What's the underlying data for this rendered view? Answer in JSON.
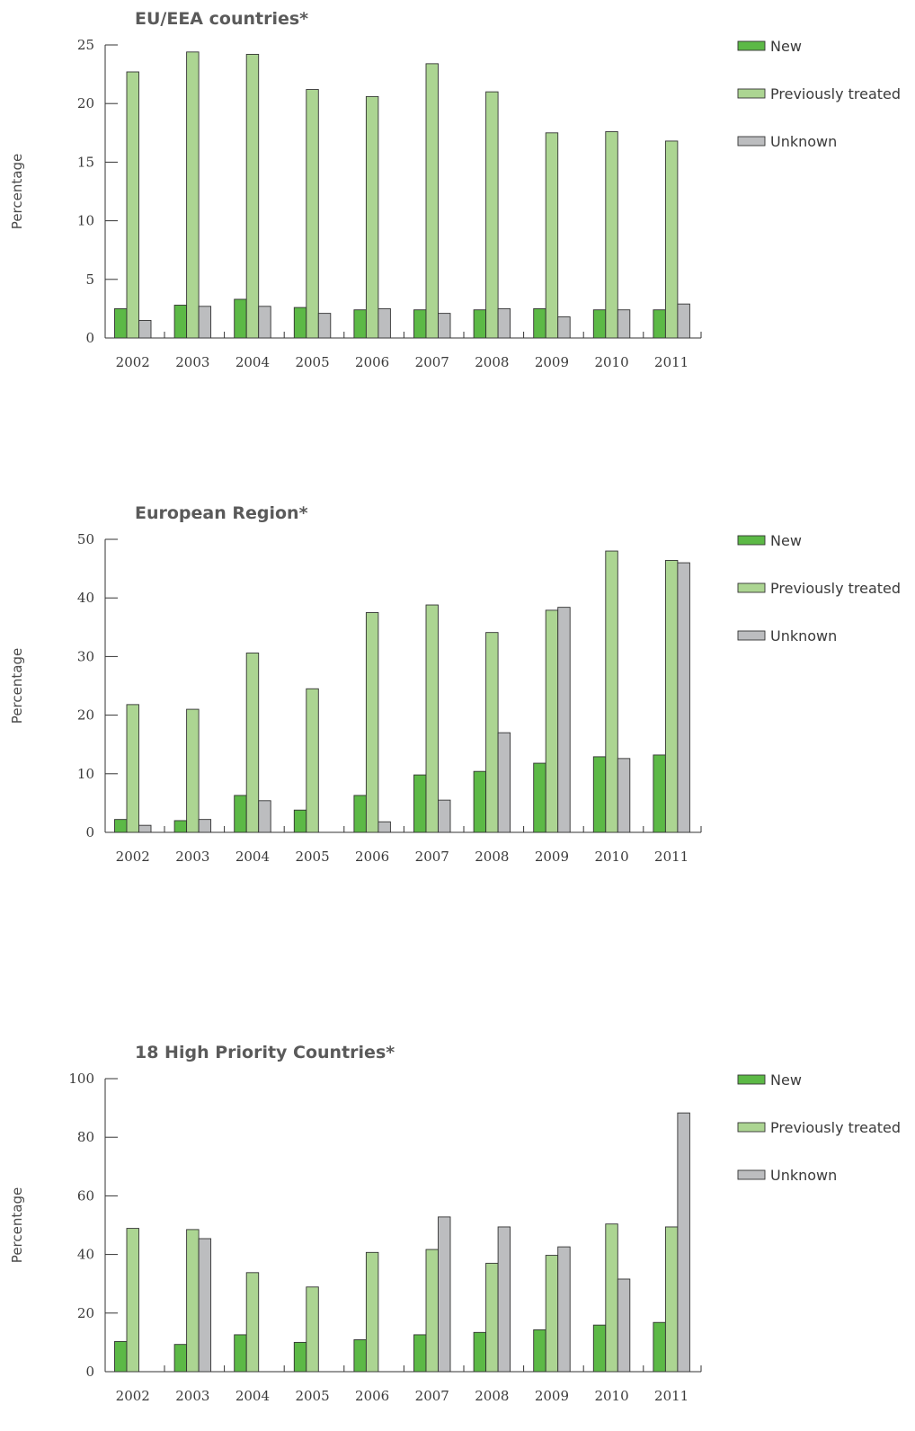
{
  "legend": [
    {
      "key": "new",
      "label": "New",
      "color": "#5cb946"
    },
    {
      "key": "prev",
      "label": "Previously treated",
      "color": "#acd592"
    },
    {
      "key": "unk",
      "label": "Unknown",
      "color": "#bcbdbf"
    }
  ],
  "chart_data": [
    {
      "type": "bar",
      "title": "EU/EEA countries*",
      "ylabel": "Percentage",
      "xlabel": "",
      "ylim": [
        0,
        25
      ],
      "yticks": [
        0,
        5,
        10,
        15,
        20,
        25
      ],
      "categories": [
        "2002",
        "2003",
        "2004",
        "2005",
        "2006",
        "2007",
        "2008",
        "2009",
        "2010",
        "2011"
      ],
      "legend_position": "right",
      "grid": false,
      "series": [
        {
          "name": "New",
          "values": [
            2.5,
            2.8,
            3.3,
            2.6,
            2.4,
            2.4,
            2.4,
            2.5,
            2.4,
            2.4
          ]
        },
        {
          "name": "Previously treated",
          "values": [
            22.7,
            24.4,
            24.2,
            21.2,
            20.6,
            23.4,
            21.0,
            17.5,
            17.6,
            16.8
          ]
        },
        {
          "name": "Unknown",
          "values": [
            1.5,
            2.7,
            2.7,
            2.1,
            2.5,
            2.1,
            2.5,
            1.8,
            2.4,
            2.9
          ]
        }
      ]
    },
    {
      "type": "bar",
      "title": "European Region*",
      "ylabel": "Percentage",
      "xlabel": "",
      "ylim": [
        0,
        50
      ],
      "yticks": [
        0,
        10,
        20,
        30,
        40,
        50
      ],
      "categories": [
        "2002",
        "2003",
        "2004",
        "2005",
        "2006",
        "2007",
        "2008",
        "2009",
        "2010",
        "2011"
      ],
      "legend_position": "right",
      "grid": false,
      "series": [
        {
          "name": "New",
          "values": [
            2.2,
            2.0,
            6.3,
            3.8,
            6.3,
            9.8,
            10.4,
            11.8,
            12.9,
            13.2
          ]
        },
        {
          "name": "Previously treated",
          "values": [
            21.8,
            21.0,
            30.6,
            24.5,
            37.5,
            38.8,
            34.1,
            37.9,
            48.0,
            46.4
          ]
        },
        {
          "name": "Unknown",
          "values": [
            1.2,
            2.2,
            5.4,
            0,
            1.8,
            5.5,
            17.0,
            38.4,
            12.6,
            46.0
          ]
        }
      ]
    },
    {
      "type": "bar",
      "title": "18 High Priority Countries*",
      "ylabel": "Percentage",
      "xlabel": "",
      "ylim": [
        0,
        100
      ],
      "yticks": [
        0,
        20,
        40,
        60,
        80,
        100
      ],
      "categories": [
        "2002",
        "2003",
        "2004",
        "2005",
        "2006",
        "2007",
        "2008",
        "2009",
        "2010",
        "2011"
      ],
      "legend_position": "right",
      "grid": false,
      "series": [
        {
          "name": "New",
          "values": [
            10.3,
            9.3,
            12.6,
            10.0,
            10.9,
            12.6,
            13.4,
            14.3,
            15.9,
            16.8
          ]
        },
        {
          "name": "Previously treated",
          "values": [
            48.9,
            48.5,
            33.8,
            28.9,
            40.7,
            41.7,
            37.0,
            39.7,
            50.4,
            49.4
          ]
        },
        {
          "name": "Unknown",
          "values": [
            0,
            45.4,
            0,
            0,
            0,
            52.8,
            49.4,
            42.6,
            31.6,
            88.3
          ]
        }
      ]
    }
  ]
}
